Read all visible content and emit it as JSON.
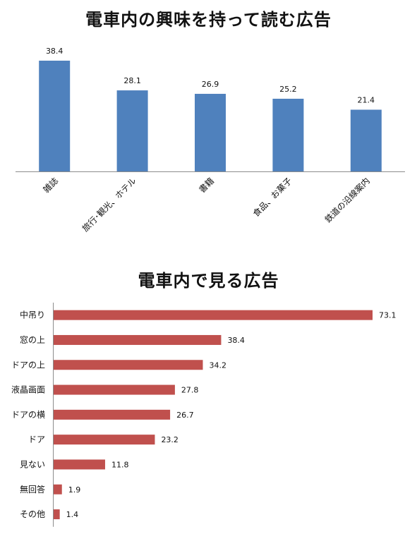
{
  "chart_data": [
    {
      "type": "bar",
      "title": "電車内の興味を持って読む広告",
      "categories": [
        "雑誌",
        "旅行･観光、ホテル",
        "書籍",
        "食品、お菓子",
        "鉄道の沿線案内"
      ],
      "values": [
        38.4,
        28.1,
        26.9,
        25.2,
        21.4
      ],
      "value_labels": [
        "38.4",
        "28.1",
        "26.9",
        "25.2",
        "21.4"
      ],
      "ylim": [
        0,
        40
      ],
      "grid": false,
      "bar_color": "#4f81bd"
    },
    {
      "type": "bar",
      "orientation": "horizontal",
      "title": "電車内で見る広告",
      "categories": [
        "中吊り",
        "窓の上",
        "ドアの上",
        "液晶画面",
        "ドアの横",
        "ドア",
        "見ない",
        "無回答",
        "その他"
      ],
      "values": [
        73.1,
        38.4,
        34.2,
        27.8,
        26.7,
        23.2,
        11.8,
        1.9,
        1.4
      ],
      "value_labels": [
        "73.1",
        "38.4",
        "34.2",
        "27.8",
        "26.7",
        "23.2",
        "11.8",
        "1.9",
        "1.4"
      ],
      "xlim": [
        0,
        73.1
      ],
      "grid": false,
      "bar_color": "#c0504d"
    }
  ]
}
